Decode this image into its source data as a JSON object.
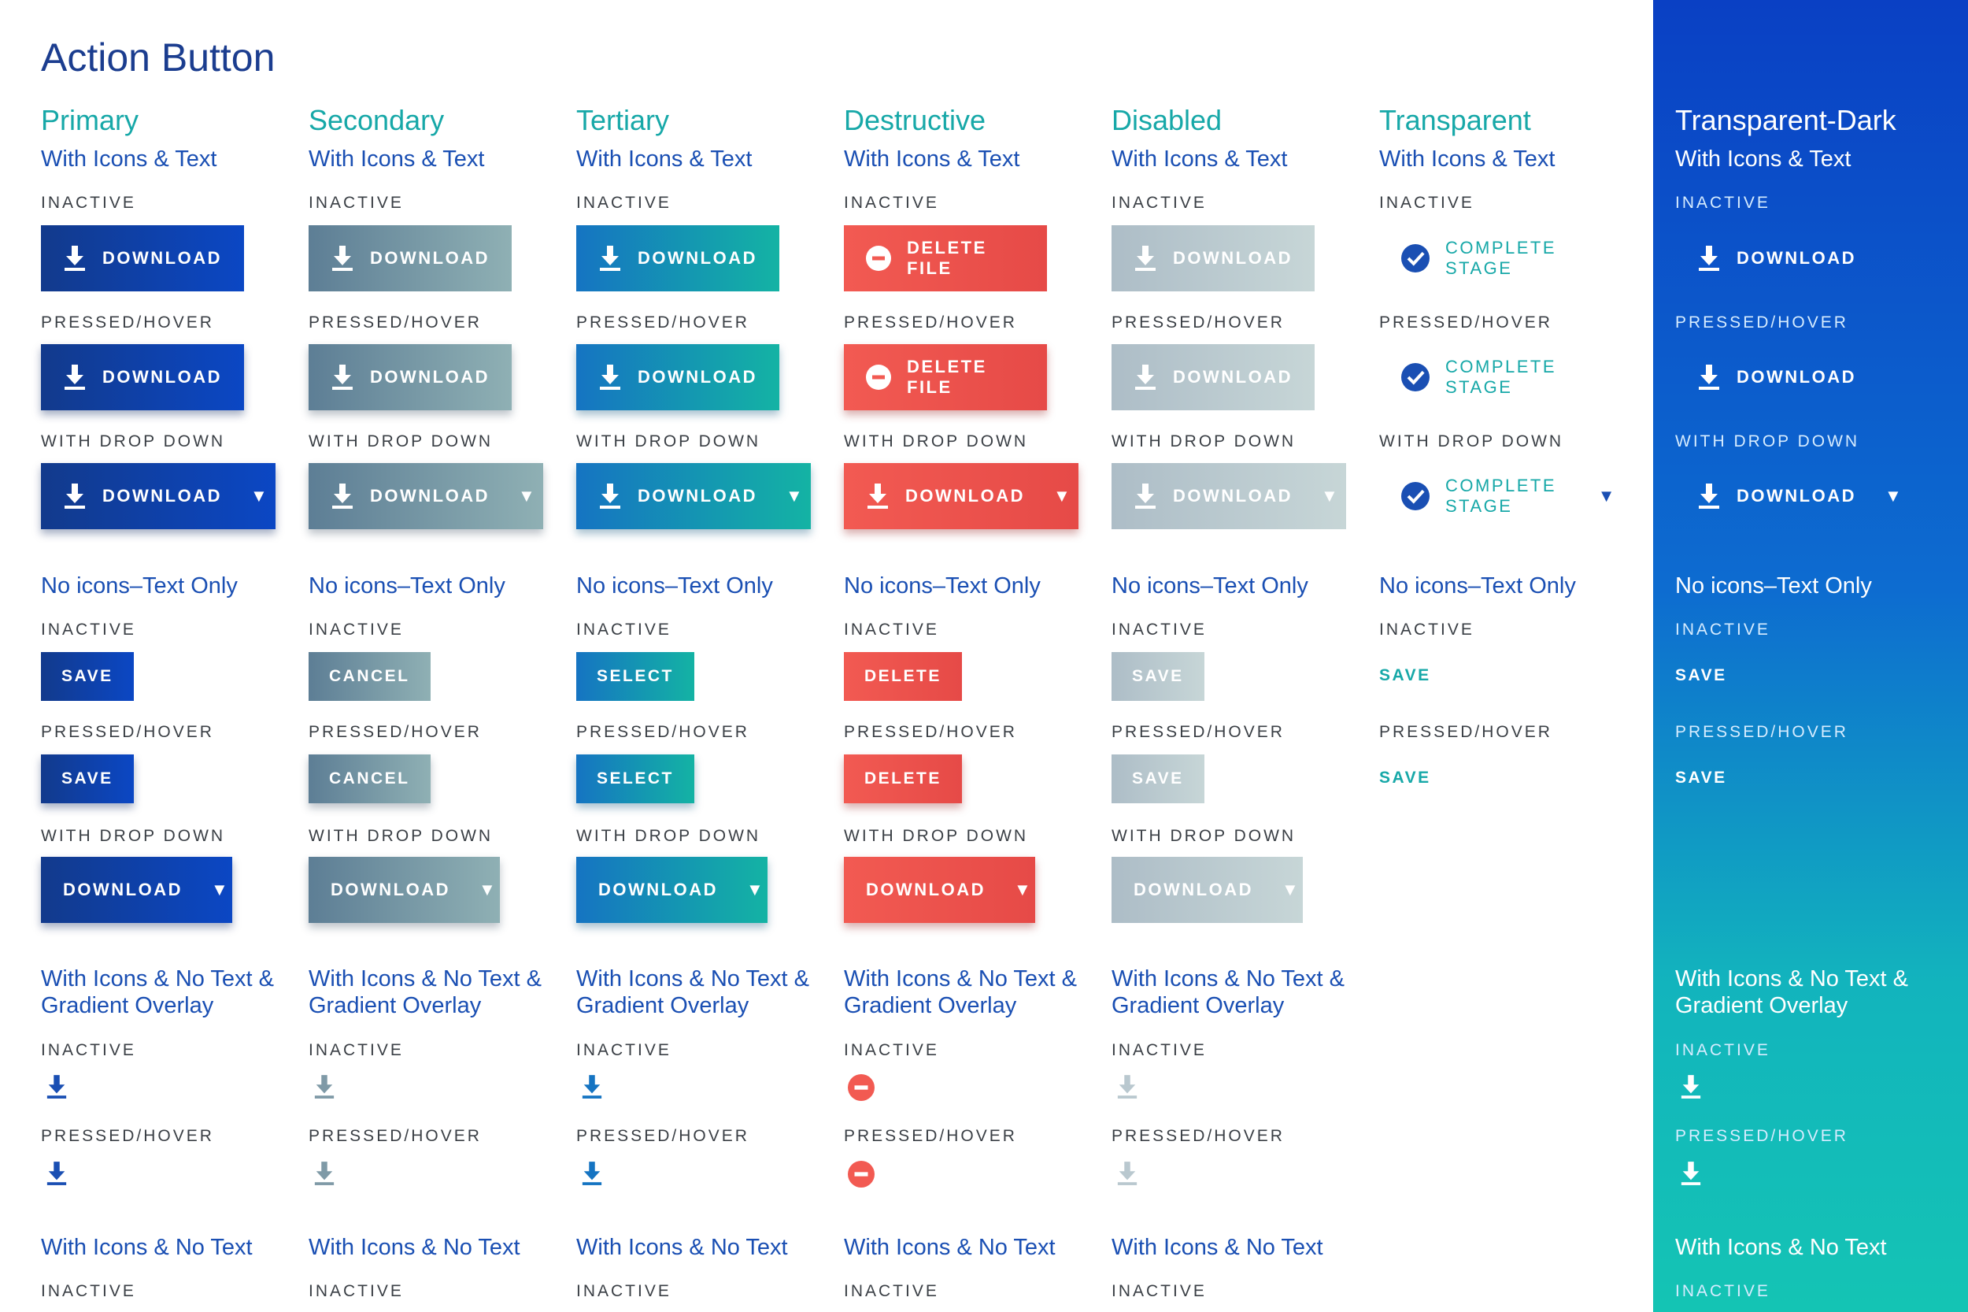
{
  "page_title": "Action Button",
  "labels": {
    "inactive": "INACTIVE",
    "pressed": "PRESSED/HOVER",
    "dropdown": "WITH DROP DOWN",
    "with_icons_text": "With Icons & Text",
    "text_only": "No icons–Text Only",
    "icons_no_text_overlay": "With Icons & No Text & Gradient Overlay",
    "icons_no_text": "With Icons & No Text"
  },
  "columns": [
    {
      "id": "primary",
      "heading": "Primary",
      "icon_label": "DOWNLOAD",
      "text_label": "SAVE",
      "dropdown_label": "DOWNLOAD"
    },
    {
      "id": "secondary",
      "heading": "Secondary",
      "icon_label": "DOWNLOAD",
      "text_label": "CANCEL",
      "dropdown_label": "DOWNLOAD"
    },
    {
      "id": "tertiary",
      "heading": "Tertiary",
      "icon_label": "DOWNLOAD",
      "text_label": "SELECT",
      "dropdown_label": "DOWNLOAD"
    },
    {
      "id": "destructive",
      "heading": "Destructive",
      "icon_label": "DELETE FILE",
      "dd_label": "DOWNLOAD",
      "text_label": "DELETE",
      "dropdown_label": "DOWNLOAD"
    },
    {
      "id": "disabled",
      "heading": "Disabled",
      "icon_label": "DOWNLOAD",
      "text_label": "SAVE",
      "dropdown_label": "DOWNLOAD"
    },
    {
      "id": "transparent",
      "heading": "Transparent",
      "icon_label": "COMPLETE STAGE",
      "text_label": "SAVE"
    },
    {
      "id": "transparent-dark",
      "heading": "Transparent-Dark",
      "icon_label": "DOWNLOAD",
      "text_label": "SAVE"
    }
  ],
  "colors": {
    "accent_teal": "#17a8a8",
    "primary_blue": "#0b47c4",
    "destructive_red": "#f25a52",
    "disabled_gray": "#adbdc7",
    "secondary_slate": "#5d7e95"
  }
}
